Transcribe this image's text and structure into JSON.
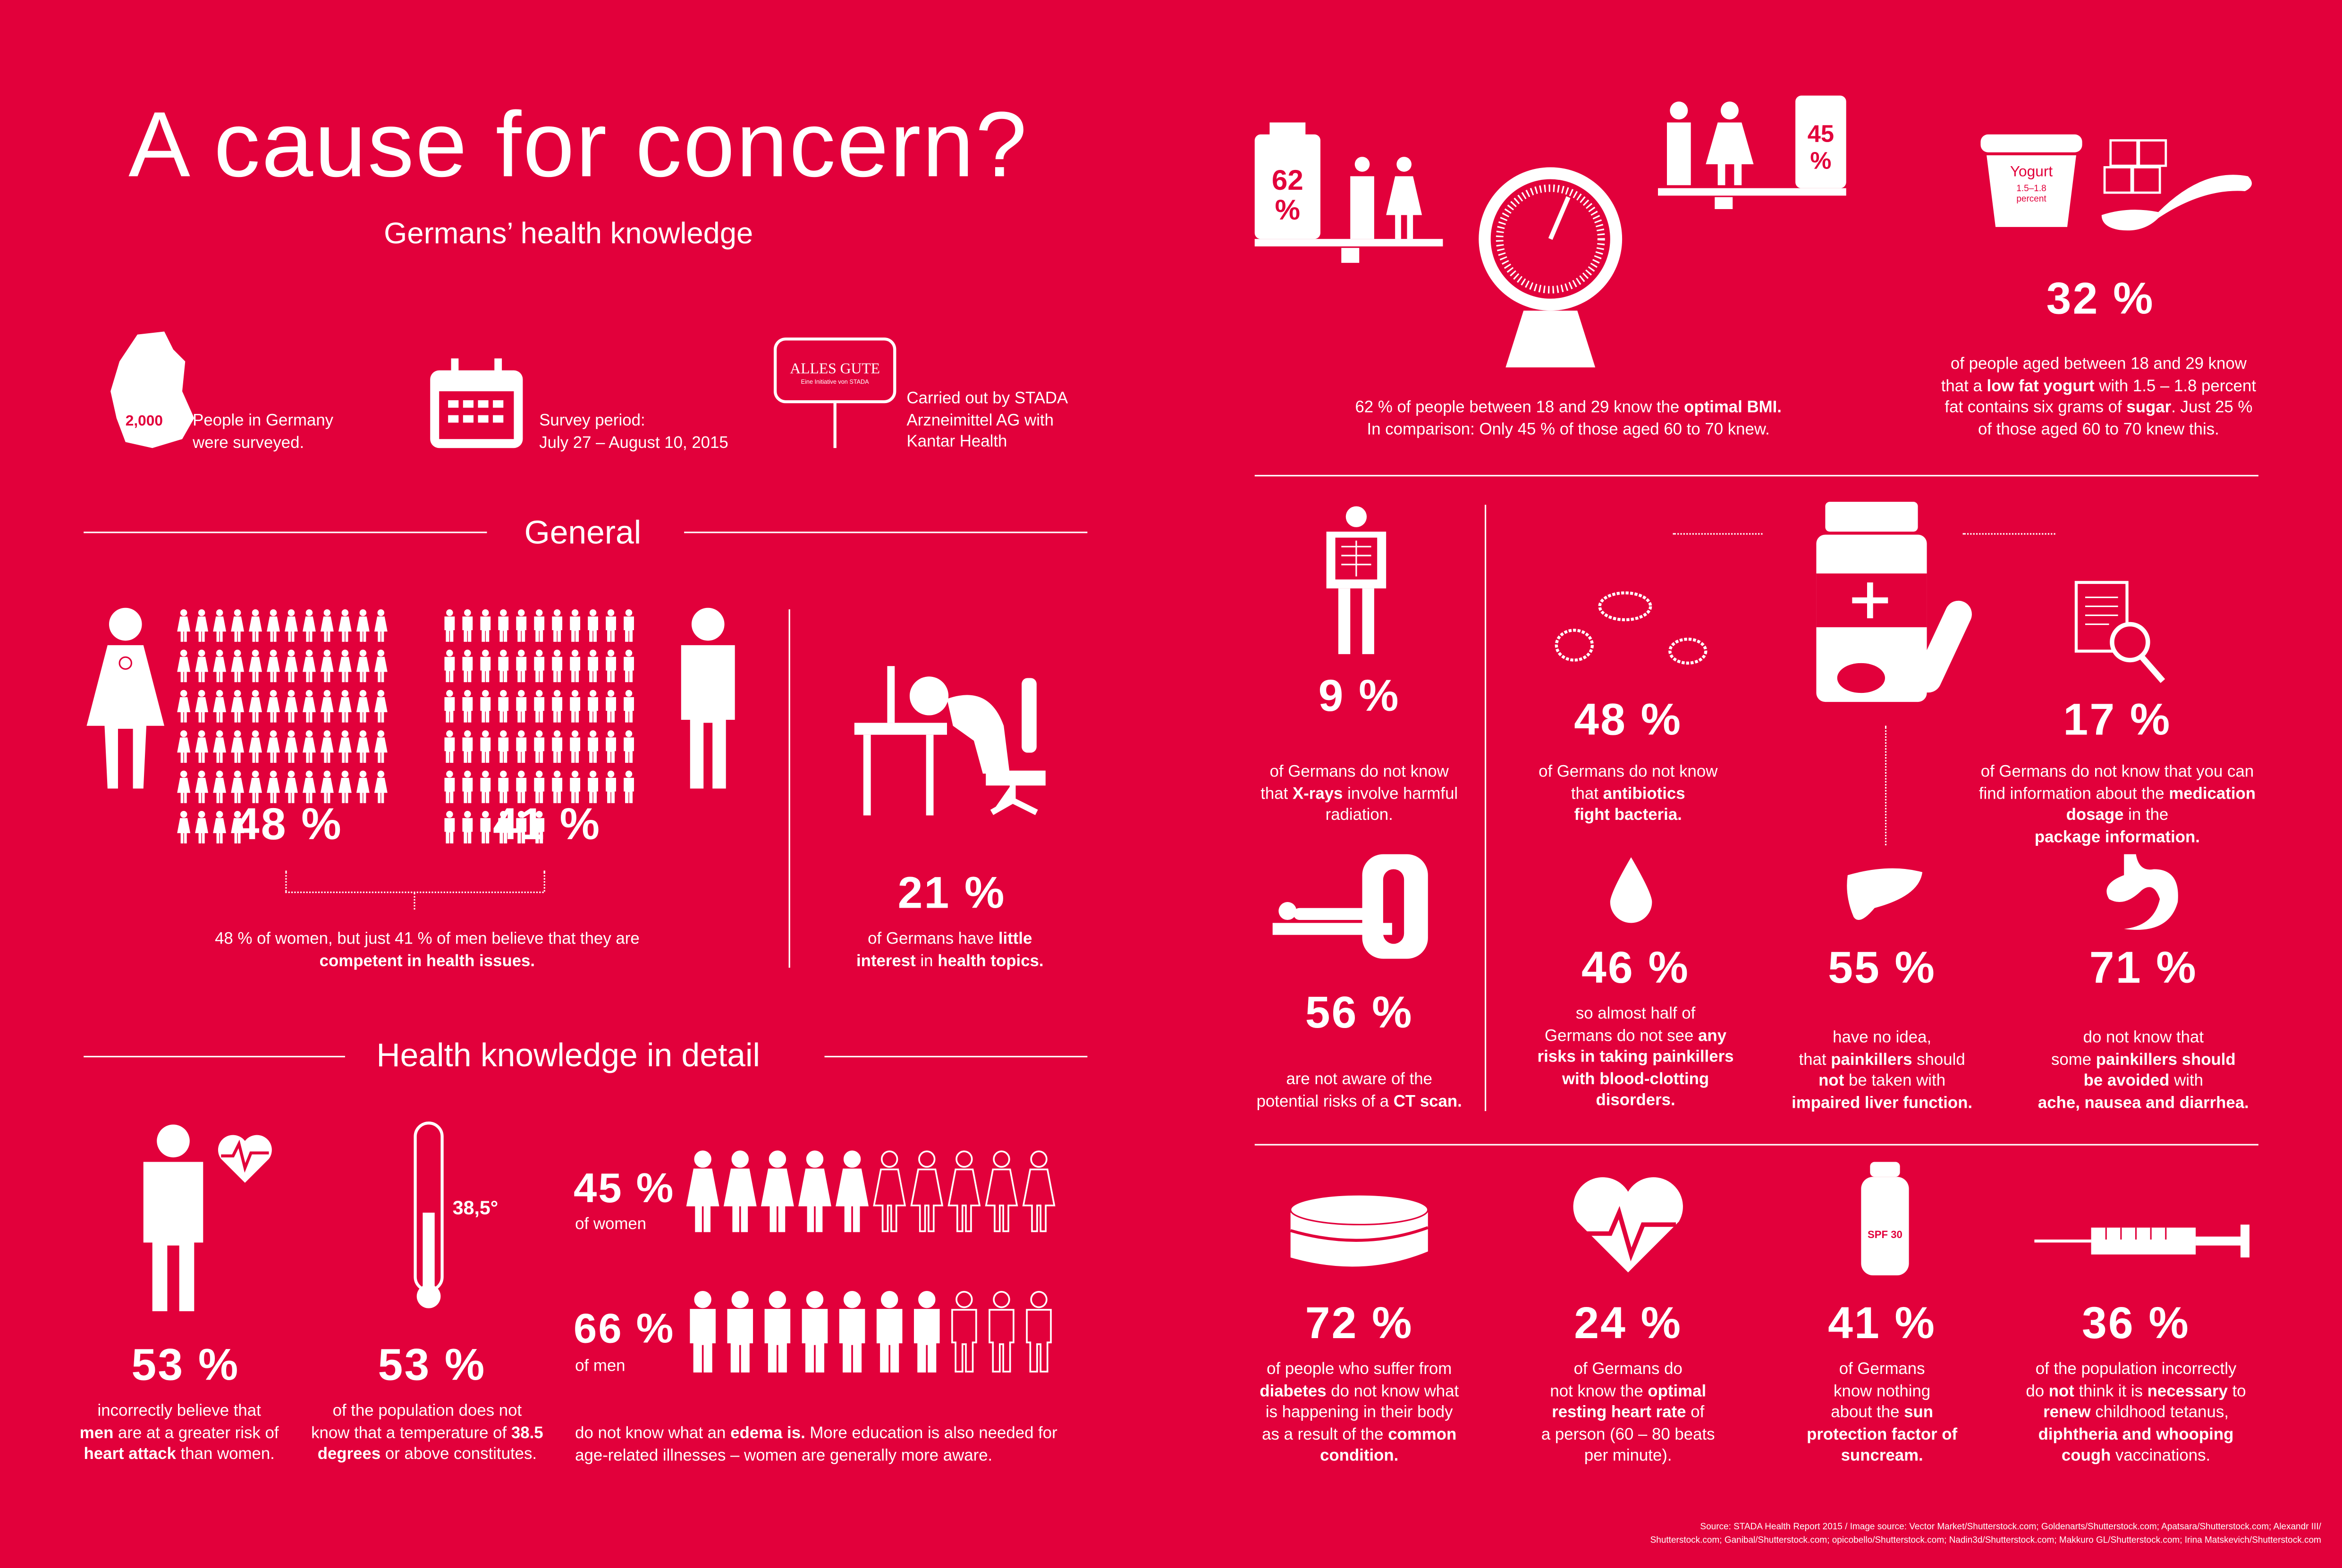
{
  "colors": {
    "background": "#E2003B",
    "foreground": "#FFFFFF"
  },
  "header": {
    "title": "A cause for concern?",
    "subtitle": "Germans’ health knowledge"
  },
  "survey": {
    "count": "2,000",
    "people": "People in Germany",
    "people2": "were surveyed.",
    "period_label": "Survey period:",
    "period": "July 27 – August 10, 2015",
    "logo_text": "ALLES GUTE",
    "logo_sub": "Eine Initiative von STADA",
    "carried1": "Carried out by STADA",
    "carried2": "Arzneimittel AG with",
    "carried3": "Kantar Health"
  },
  "general": {
    "heading": "General",
    "women_pct": "48 %",
    "men_pct": "41 %",
    "compare1": "48 % of women, but just 41 % of men believe that they are",
    "compare2": "competent in health issues.",
    "interest_pct": "21 %",
    "interest1": "of Germans have ",
    "interest1b": "little",
    "interest2": "interest",
    "interest2b": " in ",
    "interest2c": "health topics."
  },
  "detail": {
    "heading": "Health knowledge in detail",
    "heart_pct": "53 %",
    "heart1": "incorrectly believe that",
    "heart2a": "men",
    "heart2b": " are at a greater risk of",
    "heart3a": "heart attack",
    "heart3b": " than women.",
    "thermo_label": "38,5°",
    "temp_pct": "53 %",
    "temp1": "of the population does not",
    "temp2a": "know that a temperature of ",
    "temp2b": "38.5",
    "temp3a": "degrees",
    "temp3b": " or above constitutes.",
    "women_pct": "45 %",
    "women_label": "of women",
    "men_pct": "66 %",
    "men_label": "of men",
    "edema1a": "do not know what an ",
    "edema1b": "edema is.",
    "edema1c": " More education is also needed for",
    "edema2": "age-related illnesses – women are generally more aware.",
    "women_fraction": 0.45,
    "men_fraction": 0.66
  },
  "bmi": {
    "pct_young": "62 %",
    "pct_old": "45 %",
    "text1a": "62 % of people between 18 and 29 know the ",
    "text1b": "optimal BMI.",
    "text2": "In comparison: Only 45 % of those aged 60 to 70 knew."
  },
  "yogurt": {
    "cup_label": "Yogurt",
    "cup_fat": "1.5–1.8",
    "cup_unit": "percent",
    "pct": "32 %",
    "t1": "of people aged between 18 and 29 know",
    "t2a": "that a ",
    "t2b": "low fat yogurt",
    "t2c": " with 1.5 – 1.8 percent",
    "t3a": "fat contains six grams of ",
    "t3b": "sugar",
    "t3c": ". Just 25 %",
    "t4": "of those aged 60 to 70 knew this."
  },
  "facts": [
    {
      "pct": "9 %",
      "lines": [
        [
          "of Germans do not know",
          ""
        ],
        [
          "that ",
          "X-rays",
          " involve harmful"
        ],
        [
          "radiation.",
          ""
        ]
      ]
    },
    {
      "pct": "48 %",
      "lines": [
        [
          "of Germans do not know",
          ""
        ],
        [
          "that ",
          "antibiotics",
          ""
        ],
        [
          "",
          "fight bacteria.",
          ""
        ]
      ]
    },
    {
      "pct": "17 %",
      "lines": [
        [
          "of Germans do not know that you can",
          ""
        ],
        [
          "find information about the ",
          "medication",
          ""
        ],
        [
          "",
          "dosage",
          " in the "
        ],
        [
          "",
          "package information.",
          ""
        ]
      ]
    },
    {
      "pct": "56 %",
      "lines": [
        [
          "are not aware of the",
          ""
        ],
        [
          "potential risks of a ",
          "CT scan."
        ]
      ]
    },
    {
      "pct": "46 %",
      "lines": [
        [
          "so almost half of",
          ""
        ],
        [
          "Germans do not see ",
          "any"
        ],
        [
          "",
          "risks in taking painkillers"
        ],
        [
          "",
          "with blood-clotting"
        ],
        [
          "",
          "disorders."
        ]
      ]
    },
    {
      "pct": "55 %",
      "lines": [
        [
          "have no idea,",
          ""
        ],
        [
          "that ",
          "painkillers",
          " should"
        ],
        [
          "",
          "not",
          " be taken with"
        ],
        [
          "",
          "impaired liver function."
        ]
      ]
    },
    {
      "pct": "71 %",
      "lines": [
        [
          "do not know that",
          ""
        ],
        [
          "some ",
          "painkillers should"
        ],
        [
          "",
          "be avoided",
          " with "
        ],
        [
          "",
          "ache, nausea and diarrhea."
        ]
      ]
    },
    {
      "pct": "72 %",
      "lines": [
        [
          "of people who suffer from",
          ""
        ],
        [
          "",
          "diabetes",
          " do not know what"
        ],
        [
          "is happening in their body",
          ""
        ],
        [
          "as a result of the ",
          "common"
        ],
        [
          "",
          "condition."
        ]
      ]
    },
    {
      "pct": "24 %",
      "lines": [
        [
          "of Germans do",
          ""
        ],
        [
          "not know the ",
          "optimal"
        ],
        [
          "",
          "resting heart rate",
          " of"
        ],
        [
          "a person (60 – 80 beats",
          ""
        ],
        [
          "per minute).",
          ""
        ]
      ]
    },
    {
      "pct": "41 %",
      "lines": [
        [
          "of Germans",
          ""
        ],
        [
          "know nothing",
          ""
        ],
        [
          "about the ",
          "sun"
        ],
        [
          "",
          "protection factor of"
        ],
        [
          "",
          "suncream."
        ]
      ]
    },
    {
      "pct": "36 %",
      "lines": [
        [
          "of the population incorrectly",
          ""
        ],
        [
          "do ",
          "not",
          " think it is ",
          "necessary",
          " to"
        ],
        [
          "",
          "renew",
          " childhood tetanus,"
        ],
        [
          "",
          "diphtheria and whooping"
        ],
        [
          "",
          "cough",
          " vaccinations."
        ]
      ]
    }
  ],
  "spf_label": "SPF 30",
  "source1": "Source: STADA Health Report 2015 / Image source: Vector Market/Shutterstock.com; Goldenarts/Shutterstock.com; Apatsara/Shutterstock.com; Alexandr III/",
  "source2": "Shutterstock.com; Ganibal/Shutterstock.com; opicobello/Shutterstock.com; Nadin3d/Shutterstock.com; Makkuro GL/Shutterstock.com; Irina Matskevich/Shutterstock.com"
}
